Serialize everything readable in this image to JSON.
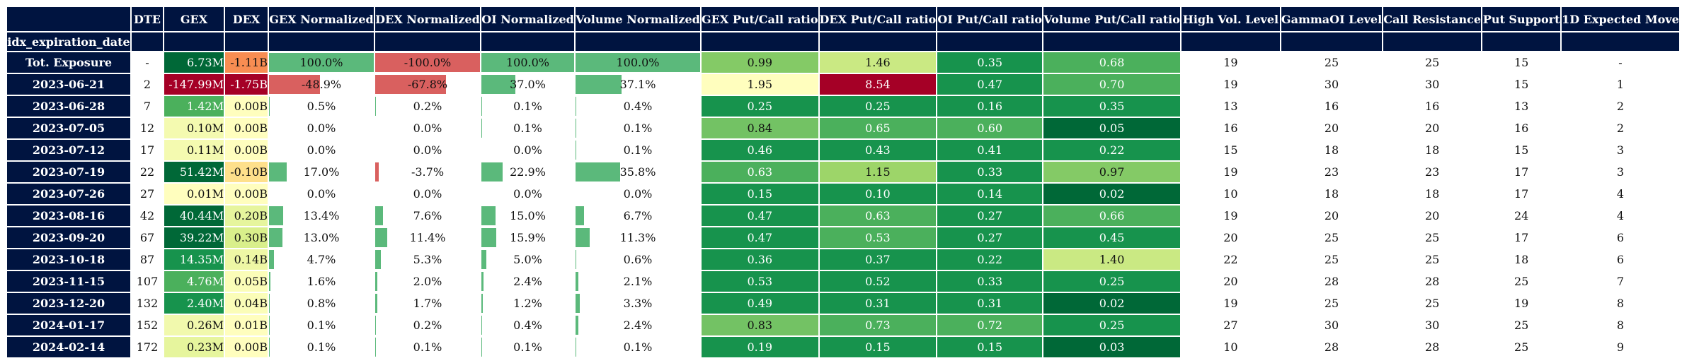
{
  "headers": {
    "index_name": "idx_expiration_date",
    "columns": [
      "DTE",
      "GEX",
      "DEX",
      "GEX Normalized",
      "DEX Normalized",
      "OI Normalized",
      "Volume Normalized",
      "GEX Put/Call ratio",
      "DEX Put/Call ratio",
      "OI Put/Call ratio",
      "Volume Put/Call ratio",
      "High Vol. Level",
      "GammaOI Level",
      "Call Resistance",
      "Put Support",
      "1D Expected Move"
    ]
  },
  "colors": {
    "header_bg": "#001440",
    "bar_green": "#5bb97b",
    "bar_red": "#d9605f"
  },
  "rows": [
    {
      "label": "Tot. Exposure",
      "dte": "-",
      "gex": "6.73M",
      "dex": "-1.11B",
      "gex_norm": "100.0%",
      "dex_norm": "-100.0%",
      "oi_norm": "100.0%",
      "vol_norm": "100.0%",
      "gex_pc": "0.99",
      "dex_pc": "1.46",
      "oi_pc": "0.35",
      "vol_pc": "0.68",
      "high_vol": "19",
      "gamma_oi": "25",
      "call_res": "25",
      "put_sup": "15",
      "exp_move": "-",
      "gex_bg": "#006837",
      "dex_bg": "#f88d52",
      "gex_pc_bg": "#84ca66",
      "dex_pc_bg": "#cae983",
      "oi_pc_bg": "#17934d",
      "vol_pc_bg": "#4bb05c"
    },
    {
      "label": "2023-06-21",
      "dte": "2",
      "gex": "-147.99M",
      "dex": "-1.75B",
      "gex_norm": "-48.9%",
      "dex_norm": "-67.8%",
      "oi_norm": "37.0%",
      "vol_norm": "37.1%",
      "gex_pc": "1.95",
      "dex_pc": "8.54",
      "oi_pc": "0.47",
      "vol_pc": "0.70",
      "high_vol": "19",
      "gamma_oi": "30",
      "call_res": "30",
      "put_sup": "15",
      "exp_move": "1",
      "gex_bg": "#a50026",
      "dex_bg": "#a50026",
      "gex_pc_bg": "#fffebe",
      "dex_pc_bg": "#a50026",
      "oi_pc_bg": "#17934d",
      "vol_pc_bg": "#4bb05c"
    },
    {
      "label": "2023-06-28",
      "dte": "7",
      "gex": "1.42M",
      "dex": "0.00B",
      "gex_norm": "0.5%",
      "dex_norm": "0.2%",
      "oi_norm": "0.1%",
      "vol_norm": "0.4%",
      "gex_pc": "0.25",
      "dex_pc": "0.25",
      "oi_pc": "0.16",
      "vol_pc": "0.35",
      "high_vol": "13",
      "gamma_oi": "16",
      "call_res": "16",
      "put_sup": "13",
      "exp_move": "2",
      "gex_bg": "#4bb05c",
      "dex_bg": "#fffebe",
      "gex_pc_bg": "#17934d",
      "dex_pc_bg": "#17934d",
      "oi_pc_bg": "#17934d",
      "vol_pc_bg": "#17934d"
    },
    {
      "label": "2023-07-05",
      "dte": "12",
      "gex": "0.10M",
      "dex": "0.00B",
      "gex_norm": "0.0%",
      "dex_norm": "0.0%",
      "oi_norm": "0.1%",
      "vol_norm": "0.1%",
      "gex_pc": "0.84",
      "dex_pc": "0.65",
      "oi_pc": "0.60",
      "vol_pc": "0.05",
      "high_vol": "16",
      "gamma_oi": "20",
      "call_res": "20",
      "put_sup": "16",
      "exp_move": "2",
      "gex_bg": "#f4fab0",
      "dex_bg": "#fffebe",
      "gex_pc_bg": "#73c264",
      "dex_pc_bg": "#4bb05c",
      "oi_pc_bg": "#4bb05c",
      "vol_pc_bg": "#006837"
    },
    {
      "label": "2023-07-12",
      "dte": "17",
      "gex": "0.11M",
      "dex": "0.00B",
      "gex_norm": "0.0%",
      "dex_norm": "0.0%",
      "oi_norm": "0.0%",
      "vol_norm": "0.1%",
      "gex_pc": "0.46",
      "dex_pc": "0.43",
      "oi_pc": "0.41",
      "vol_pc": "0.22",
      "high_vol": "15",
      "gamma_oi": "18",
      "call_res": "18",
      "put_sup": "15",
      "exp_move": "3",
      "gex_bg": "#f4fab0",
      "dex_bg": "#fffebe",
      "gex_pc_bg": "#17934d",
      "dex_pc_bg": "#17934d",
      "oi_pc_bg": "#17934d",
      "vol_pc_bg": "#17934d"
    },
    {
      "label": "2023-07-19",
      "dte": "22",
      "gex": "51.42M",
      "dex": "-0.10B",
      "gex_norm": "17.0%",
      "dex_norm": "-3.7%",
      "oi_norm": "22.9%",
      "vol_norm": "35.8%",
      "gex_pc": "0.63",
      "dex_pc": "1.15",
      "oi_pc": "0.33",
      "vol_pc": "0.97",
      "high_vol": "19",
      "gamma_oi": "23",
      "call_res": "23",
      "put_sup": "17",
      "exp_move": "3",
      "gex_bg": "#006837",
      "dex_bg": "#fee08b",
      "gex_pc_bg": "#4bb05c",
      "dex_pc_bg": "#9dd569",
      "oi_pc_bg": "#17934d",
      "vol_pc_bg": "#84ca66"
    },
    {
      "label": "2023-07-26",
      "dte": "27",
      "gex": "0.01M",
      "dex": "0.00B",
      "gex_norm": "0.0%",
      "dex_norm": "0.0%",
      "oi_norm": "0.0%",
      "vol_norm": "0.0%",
      "gex_pc": "0.15",
      "dex_pc": "0.10",
      "oi_pc": "0.14",
      "vol_pc": "0.02",
      "high_vol": "10",
      "gamma_oi": "18",
      "call_res": "18",
      "put_sup": "17",
      "exp_move": "4",
      "gex_bg": "#fffebe",
      "dex_bg": "#fffebe",
      "gex_pc_bg": "#17934d",
      "dex_pc_bg": "#17934d",
      "oi_pc_bg": "#17934d",
      "vol_pc_bg": "#006837"
    },
    {
      "label": "2023-08-16",
      "dte": "42",
      "gex": "40.44M",
      "dex": "0.20B",
      "gex_norm": "13.4%",
      "dex_norm": "7.6%",
      "oi_norm": "15.0%",
      "vol_norm": "6.7%",
      "gex_pc": "0.47",
      "dex_pc": "0.63",
      "oi_pc": "0.27",
      "vol_pc": "0.66",
      "high_vol": "19",
      "gamma_oi": "20",
      "call_res": "20",
      "put_sup": "24",
      "exp_move": "4",
      "gex_bg": "#006837",
      "dex_bg": "#e6f59d",
      "gex_pc_bg": "#17934d",
      "dex_pc_bg": "#4bb05c",
      "oi_pc_bg": "#17934d",
      "vol_pc_bg": "#4bb05c"
    },
    {
      "label": "2023-09-20",
      "dte": "67",
      "gex": "39.22M",
      "dex": "0.30B",
      "gex_norm": "13.0%",
      "dex_norm": "11.4%",
      "oi_norm": "15.9%",
      "vol_norm": "11.3%",
      "gex_pc": "0.47",
      "dex_pc": "0.53",
      "oi_pc": "0.27",
      "vol_pc": "0.45",
      "high_vol": "20",
      "gamma_oi": "25",
      "call_res": "25",
      "put_sup": "17",
      "exp_move": "6",
      "gex_bg": "#006837",
      "dex_bg": "#d9ef8b",
      "gex_pc_bg": "#17934d",
      "dex_pc_bg": "#4bb05c",
      "oi_pc_bg": "#17934d",
      "vol_pc_bg": "#17934d"
    },
    {
      "label": "2023-10-18",
      "dte": "87",
      "gex": "14.35M",
      "dex": "0.14B",
      "gex_norm": "4.7%",
      "dex_norm": "5.3%",
      "oi_norm": "5.0%",
      "vol_norm": "0.6%",
      "gex_pc": "0.36",
      "dex_pc": "0.37",
      "oi_pc": "0.22",
      "vol_pc": "1.40",
      "high_vol": "22",
      "gamma_oi": "25",
      "call_res": "25",
      "put_sup": "18",
      "exp_move": "6",
      "gex_bg": "#17934d",
      "dex_bg": "#eef7a5",
      "gex_pc_bg": "#17934d",
      "dex_pc_bg": "#17934d",
      "oi_pc_bg": "#17934d",
      "vol_pc_bg": "#cae983"
    },
    {
      "label": "2023-11-15",
      "dte": "107",
      "gex": "4.76M",
      "dex": "0.05B",
      "gex_norm": "1.6%",
      "dex_norm": "2.0%",
      "oi_norm": "2.4%",
      "vol_norm": "2.1%",
      "gex_pc": "0.53",
      "dex_pc": "0.52",
      "oi_pc": "0.33",
      "vol_pc": "0.25",
      "high_vol": "20",
      "gamma_oi": "28",
      "call_res": "28",
      "put_sup": "25",
      "exp_move": "7",
      "gex_bg": "#4bb05c",
      "dex_bg": "#fbfdb8",
      "gex_pc_bg": "#17934d",
      "dex_pc_bg": "#17934d",
      "oi_pc_bg": "#17934d",
      "vol_pc_bg": "#17934d"
    },
    {
      "label": "2023-12-20",
      "dte": "132",
      "gex": "2.40M",
      "dex": "0.04B",
      "gex_norm": "0.8%",
      "dex_norm": "1.7%",
      "oi_norm": "1.2%",
      "vol_norm": "3.3%",
      "gex_pc": "0.49",
      "dex_pc": "0.31",
      "oi_pc": "0.31",
      "vol_pc": "0.02",
      "high_vol": "19",
      "gamma_oi": "25",
      "call_res": "25",
      "put_sup": "19",
      "exp_move": "8",
      "gex_bg": "#17934d",
      "dex_bg": "#fbfdb8",
      "gex_pc_bg": "#17934d",
      "dex_pc_bg": "#17934d",
      "oi_pc_bg": "#17934d",
      "vol_pc_bg": "#006837"
    },
    {
      "label": "2024-01-17",
      "dte": "152",
      "gex": "0.26M",
      "dex": "0.01B",
      "gex_norm": "0.1%",
      "dex_norm": "0.2%",
      "oi_norm": "0.4%",
      "vol_norm": "2.4%",
      "gex_pc": "0.83",
      "dex_pc": "0.73",
      "oi_pc": "0.72",
      "vol_pc": "0.25",
      "high_vol": "27",
      "gamma_oi": "30",
      "call_res": "30",
      "put_sup": "25",
      "exp_move": "8",
      "gex_bg": "#f1f9ad",
      "dex_bg": "#fffebe",
      "gex_pc_bg": "#73c264",
      "dex_pc_bg": "#4bb05c",
      "oi_pc_bg": "#4bb05c",
      "vol_pc_bg": "#17934d"
    },
    {
      "label": "2024-02-14",
      "dte": "172",
      "gex": "0.23M",
      "dex": "0.00B",
      "gex_norm": "0.1%",
      "dex_norm": "0.1%",
      "oi_norm": "0.1%",
      "vol_norm": "0.1%",
      "gex_pc": "0.19",
      "dex_pc": "0.15",
      "oi_pc": "0.15",
      "vol_pc": "0.03",
      "high_vol": "10",
      "gamma_oi": "28",
      "call_res": "28",
      "put_sup": "25",
      "exp_move": "9",
      "gex_bg": "#e6f59d",
      "dex_bg": "#fffebe",
      "gex_pc_bg": "#17934d",
      "dex_pc_bg": "#17934d",
      "oi_pc_bg": "#17934d",
      "vol_pc_bg": "#006837"
    }
  ]
}
